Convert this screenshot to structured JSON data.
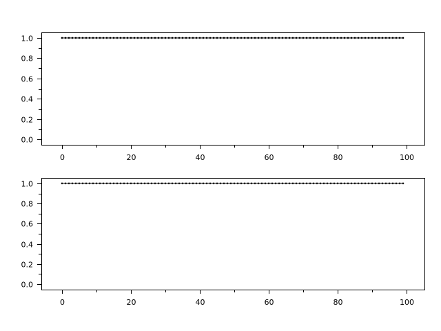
{
  "chart_data": [
    {
      "type": "line",
      "title": "",
      "xlabel": "",
      "ylabel": "",
      "xlim": [
        -6,
        105.2
      ],
      "ylim": [
        -0.054,
        1.054
      ],
      "x_ticks": [
        0,
        20,
        40,
        60,
        80,
        100
      ],
      "x_tick_labels": [
        "0",
        "20",
        "40",
        "60",
        "80",
        "100"
      ],
      "x_minor_ticks": [
        10,
        30,
        50,
        70,
        90
      ],
      "y_ticks": [
        0.0,
        0.2,
        0.4,
        0.6,
        0.8,
        1.0
      ],
      "y_tick_labels": [
        "0.0",
        "0.2",
        "0.4",
        "0.6",
        "0.8",
        "1.0"
      ],
      "y_minor_ticks": [
        0.1,
        0.3,
        0.5,
        0.7,
        0.9
      ],
      "grid": false,
      "marker": "dot",
      "color": "#000000",
      "series": [
        {
          "x_start": 0,
          "x_end": 99,
          "x_step": 1,
          "y_constant": 1.0
        }
      ]
    },
    {
      "type": "line",
      "title": "",
      "xlabel": "",
      "ylabel": "",
      "xlim": [
        -6,
        105.2
      ],
      "ylim": [
        -0.054,
        1.054
      ],
      "x_ticks": [
        0,
        20,
        40,
        60,
        80,
        100
      ],
      "x_tick_labels": [
        "0",
        "20",
        "40",
        "60",
        "80",
        "100"
      ],
      "x_minor_ticks": [
        10,
        30,
        50,
        70,
        90
      ],
      "y_ticks": [
        0.0,
        0.2,
        0.4,
        0.6,
        0.8,
        1.0
      ],
      "y_tick_labels": [
        "0.0",
        "0.2",
        "0.4",
        "0.6",
        "0.8",
        "1.0"
      ],
      "y_minor_ticks": [
        0.1,
        0.3,
        0.5,
        0.7,
        0.9
      ],
      "grid": false,
      "marker": "dot",
      "color": "#000000",
      "series": [
        {
          "x_start": 0,
          "x_end": 99,
          "x_step": 1,
          "y_constant": 1.0
        }
      ]
    }
  ]
}
